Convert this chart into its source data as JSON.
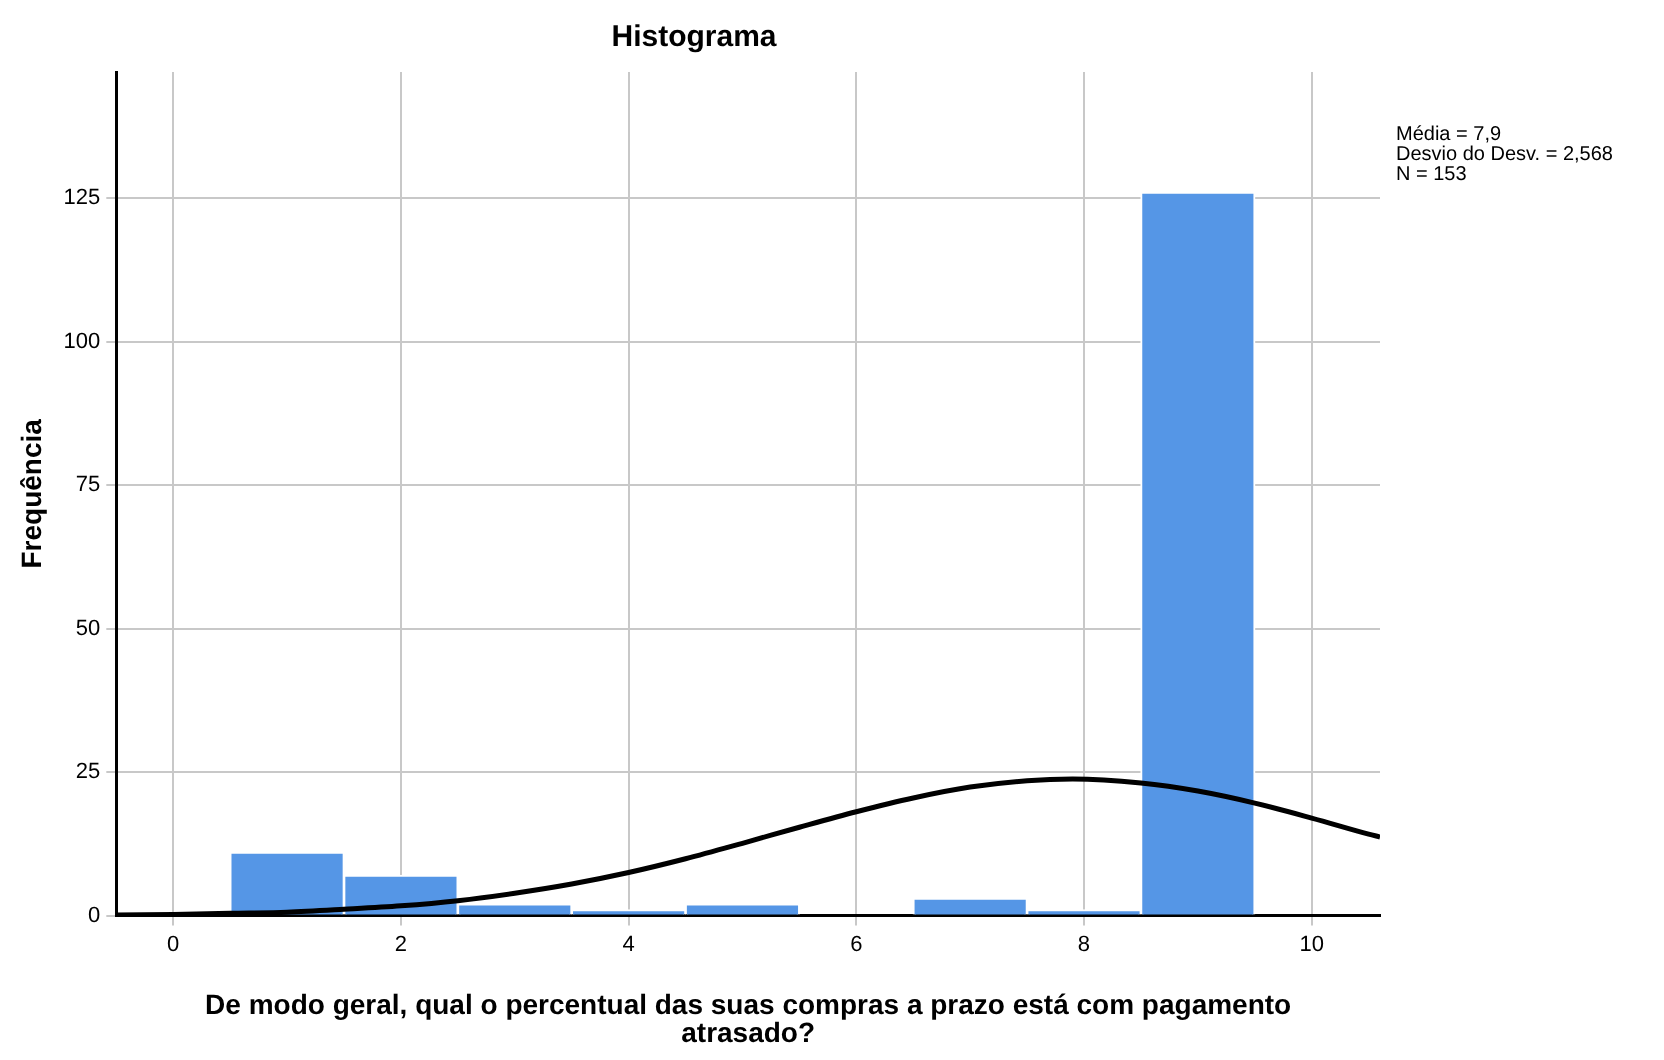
{
  "chart_data": {
    "type": "histogram",
    "title": "Histograma",
    "xlabel": "De modo geral, qual o percentual das suas compras a prazo está com pagamento atrasado?",
    "ylabel": "Frequência",
    "bins": [
      0.5,
      1.5,
      2.5,
      3.5,
      4.5,
      5.5,
      6.5,
      7.5,
      8.5,
      9.5
    ],
    "values": [
      11,
      7,
      2,
      1,
      2,
      0,
      3,
      1,
      126
    ],
    "color": "#5596e6",
    "series": [
      {
        "type": "line",
        "color": "#000000",
        "x": [
          -0.5,
          0,
          0.5,
          1,
          1.5,
          2,
          2.5,
          3,
          3.5,
          4,
          4.5,
          5,
          5.5,
          6,
          6.5,
          7,
          7.5,
          7.9,
          8.5,
          9,
          9.5,
          10,
          10.5,
          10.6
        ],
        "values": [
          0.1,
          0.2,
          0.4,
          0.6,
          1.1,
          1.7,
          2.6,
          3.9,
          5.5,
          7.5,
          9.9,
          12.6,
          15.4,
          18.1,
          20.5,
          22.4,
          23.5,
          23.8,
          23.1,
          21.7,
          19.6,
          17,
          14.2,
          13.7
        ]
      }
    ],
    "xlim": [
      -0.5,
      10.6
    ],
    "xticks": [
      0,
      2,
      4,
      6,
      8,
      10
    ],
    "ylim": [
      0,
      147
    ],
    "yticks": [
      0,
      25,
      50,
      75,
      100,
      125
    ],
    "grid": true,
    "marker": "none",
    "annotations": [
      "Média = 7,9",
      "Desvio do Desv. = 2,568",
      "N = 153"
    ]
  }
}
